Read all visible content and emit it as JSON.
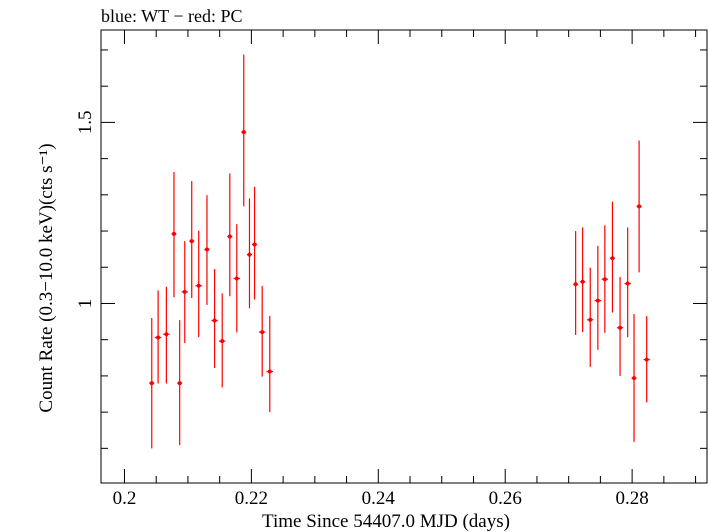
{
  "chart_data": {
    "type": "scatter",
    "title": "blue: WT − red: PC",
    "xlabel": "Time Since 54407.0 MJD (days)",
    "ylabel": "Count Rate (0.3−10.0 keV)(cts s⁻¹)",
    "xlim": [
      0.1963,
      0.2918
    ],
    "ylim": [
      0.5043,
      1.7551
    ],
    "x_ticks": [
      {
        "value": 0.2,
        "label": "0.2"
      },
      {
        "value": 0.22,
        "label": "0.22"
      },
      {
        "value": 0.24,
        "label": "0.24"
      },
      {
        "value": 0.26,
        "label": "0.26"
      },
      {
        "value": 0.28,
        "label": "0.28"
      }
    ],
    "y_ticks": [
      {
        "value": 1.0,
        "label": "1"
      },
      {
        "value": 1.5,
        "label": "1.5"
      }
    ],
    "grid": false,
    "color": "#ff0000",
    "series": [
      {
        "name": "PC",
        "color": "#ff0000",
        "points": [
          {
            "x": 0.2043,
            "y": 0.78,
            "yerr_low": 0.18,
            "yerr_high": 0.18,
            "xerr": 0.0004
          },
          {
            "x": 0.2053,
            "y": 0.906,
            "yerr_low": 0.127,
            "yerr_high": 0.13,
            "xerr": 0.0005
          },
          {
            "x": 0.2066,
            "y": 0.915,
            "yerr_low": 0.136,
            "yerr_high": 0.131,
            "xerr": 0.0005
          },
          {
            "x": 0.2078,
            "y": 1.192,
            "yerr_low": 0.175,
            "yerr_high": 0.171,
            "xerr": 0.0004
          },
          {
            "x": 0.2087,
            "y": 0.78,
            "yerr_low": 0.171,
            "yerr_high": 0.174,
            "xerr": 0.0004
          },
          {
            "x": 0.2095,
            "y": 1.032,
            "yerr_low": 0.141,
            "yerr_high": 0.14,
            "xerr": 0.0005
          },
          {
            "x": 0.2106,
            "y": 1.172,
            "yerr_low": 0.157,
            "yerr_high": 0.166,
            "xerr": 0.0004
          },
          {
            "x": 0.2117,
            "y": 1.049,
            "yerr_low": 0.142,
            "yerr_high": 0.152,
            "xerr": 0.0005
          },
          {
            "x": 0.213,
            "y": 1.149,
            "yerr_low": 0.153,
            "yerr_high": 0.15,
            "xerr": 0.0004
          },
          {
            "x": 0.2142,
            "y": 0.953,
            "yerr_low": 0.131,
            "yerr_high": 0.142,
            "xerr": 0.0005
          },
          {
            "x": 0.2154,
            "y": 0.896,
            "yerr_low": 0.128,
            "yerr_high": 0.132,
            "xerr": 0.0005
          },
          {
            "x": 0.2166,
            "y": 1.185,
            "yerr_low": 0.165,
            "yerr_high": 0.174,
            "xerr": 0.0004
          },
          {
            "x": 0.2177,
            "y": 1.069,
            "yerr_low": 0.149,
            "yerr_high": 0.15,
            "xerr": 0.0005
          },
          {
            "x": 0.2188,
            "y": 1.473,
            "yerr_low": 0.205,
            "yerr_high": 0.214,
            "xerr": 0.0004
          },
          {
            "x": 0.2197,
            "y": 1.135,
            "yerr_low": 0.148,
            "yerr_high": 0.155,
            "xerr": 0.0004
          },
          {
            "x": 0.2205,
            "y": 1.163,
            "yerr_low": 0.152,
            "yerr_high": 0.159,
            "xerr": 0.0004
          },
          {
            "x": 0.2217,
            "y": 0.921,
            "yerr_low": 0.123,
            "yerr_high": 0.127,
            "xerr": 0.0005
          },
          {
            "x": 0.2229,
            "y": 0.812,
            "yerr_low": 0.112,
            "yerr_high": 0.154,
            "xerr": 0.0005
          },
          {
            "x": 0.2711,
            "y": 1.053,
            "yerr_low": 0.14,
            "yerr_high": 0.147,
            "xerr": 0.0004
          },
          {
            "x": 0.2722,
            "y": 1.06,
            "yerr_low": 0.139,
            "yerr_high": 0.15,
            "xerr": 0.0004
          },
          {
            "x": 0.2734,
            "y": 0.955,
            "yerr_low": 0.13,
            "yerr_high": 0.144,
            "xerr": 0.0005
          },
          {
            "x": 0.2746,
            "y": 1.008,
            "yerr_low": 0.136,
            "yerr_high": 0.151,
            "xerr": 0.0005
          },
          {
            "x": 0.2757,
            "y": 1.067,
            "yerr_low": 0.148,
            "yerr_high": 0.149,
            "xerr": 0.0005
          },
          {
            "x": 0.2769,
            "y": 1.125,
            "yerr_low": 0.15,
            "yerr_high": 0.156,
            "xerr": 0.0004
          },
          {
            "x": 0.2781,
            "y": 0.933,
            "yerr_low": 0.133,
            "yerr_high": 0.14,
            "xerr": 0.0005
          },
          {
            "x": 0.2793,
            "y": 1.055,
            "yerr_low": 0.148,
            "yerr_high": 0.155,
            "xerr": 0.0005
          },
          {
            "x": 0.2803,
            "y": 0.794,
            "yerr_low": 0.176,
            "yerr_high": 0.177,
            "xerr": 0.0004
          },
          {
            "x": 0.2811,
            "y": 1.268,
            "yerr_low": 0.182,
            "yerr_high": 0.182,
            "xerr": 0.0004
          },
          {
            "x": 0.2823,
            "y": 0.845,
            "yerr_low": 0.118,
            "yerr_high": 0.12,
            "xerr": 0.0005
          }
        ]
      }
    ]
  }
}
